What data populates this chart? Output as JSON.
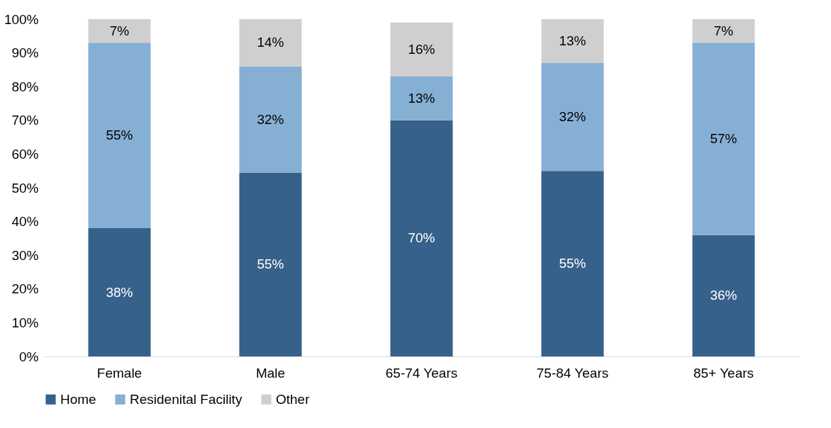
{
  "chart_data": {
    "type": "bar",
    "stacked": true,
    "categories": [
      "Female",
      "Male",
      "65-74 Years",
      "75-84 Years",
      "85+ Years"
    ],
    "series": [
      {
        "name": "Home",
        "color": "#36618a",
        "values": [
          38,
          54.5,
          70,
          55,
          36
        ],
        "value_labels": [
          "38%",
          "55%",
          "70%",
          "55%",
          "36%"
        ]
      },
      {
        "name": "Residenital Facility",
        "color": "#86afd4",
        "values": [
          55,
          31.5,
          13,
          32,
          57
        ],
        "value_labels": [
          "55%",
          "32%",
          "13%",
          "32%",
          "57%"
        ]
      },
      {
        "name": "Other",
        "color": "#d0cfd0",
        "values": [
          7,
          14,
          16,
          13,
          7
        ],
        "value_labels": [
          "7%",
          "14%",
          "16%",
          "13%",
          "7%"
        ]
      }
    ],
    "ylim": [
      0,
      100
    ],
    "yticks": [
      {
        "value": 0,
        "label": "0%"
      },
      {
        "value": 10,
        "label": "10%"
      },
      {
        "value": 20,
        "label": "20%"
      },
      {
        "value": 30,
        "label": "30%"
      },
      {
        "value": 40,
        "label": "40%"
      },
      {
        "value": 50,
        "label": "50%"
      },
      {
        "value": 60,
        "label": "60%"
      },
      {
        "value": 70,
        "label": "70%"
      },
      {
        "value": 80,
        "label": "80%"
      },
      {
        "value": 90,
        "label": "90%"
      },
      {
        "value": 100,
        "label": "100%"
      }
    ],
    "grid": false,
    "legend": "bottom"
  }
}
